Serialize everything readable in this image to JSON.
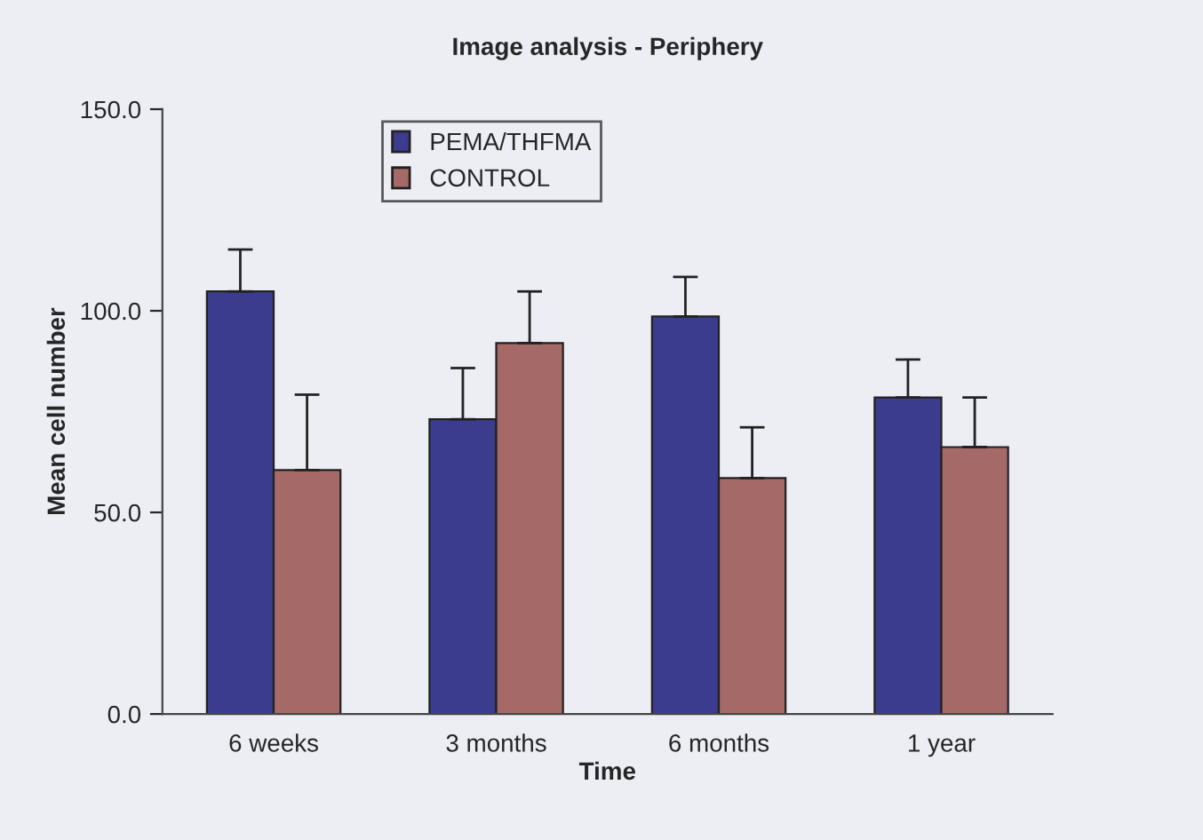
{
  "chart_data": {
    "type": "bar",
    "title": "Image analysis - Periphery",
    "xlabel": "Time",
    "ylabel": "Mean cell number",
    "categories": [
      "6 weeks",
      "3 months",
      "6 months",
      "1 year"
    ],
    "series": [
      {
        "name": "PEMA/THFMA",
        "color": "#3c3c8e",
        "values": [
          104.8,
          73.1,
          98.6,
          78.5
        ],
        "errors": [
          [
            104.8,
            115.2
          ],
          [
            73.1,
            85.8
          ],
          [
            98.6,
            108.4
          ],
          [
            78.5,
            87.9
          ]
        ]
      },
      {
        "name": "CONTROL",
        "color": "#a56a67",
        "values": [
          60.5,
          92.0,
          58.5,
          66.2
        ],
        "errors": [
          [
            60.5,
            79.2
          ],
          [
            92.0,
            104.8
          ],
          [
            58.5,
            71.1
          ],
          [
            66.2,
            78.5
          ]
        ]
      }
    ],
    "ylim": [
      0,
      150
    ],
    "yticks": [
      {
        "value": 0,
        "label": "0.0"
      },
      {
        "value": 50,
        "label": "50.0"
      },
      {
        "value": 100,
        "label": "100.0"
      },
      {
        "value": 150,
        "label": "150.0"
      }
    ],
    "grid": false,
    "legend": "top"
  }
}
